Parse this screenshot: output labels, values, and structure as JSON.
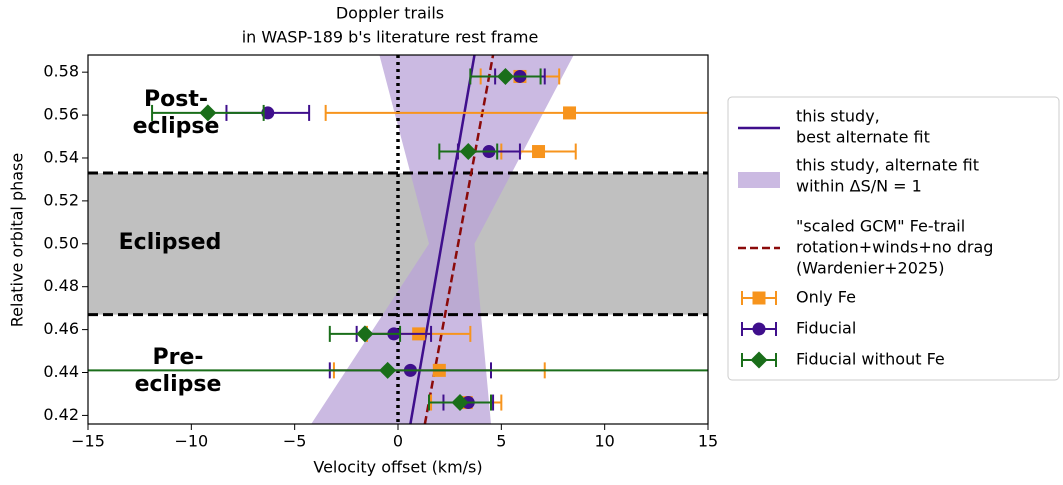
{
  "chart_data": {
    "type": "errorbar",
    "title": [
      "Doppler trails",
      "in WASP-189 b's literature rest frame"
    ],
    "x_label": "Velocity offset (km/s)",
    "y_label": "Relative orbital phase",
    "xlim": [
      -15,
      15
    ],
    "ylim": [
      0.416,
      0.588
    ],
    "xticks": [
      {
        "value": -15,
        "label": "−15"
      },
      {
        "value": -10,
        "label": "−10"
      },
      {
        "value": -5,
        "label": "−5"
      },
      0,
      5,
      10,
      15
    ],
    "yticks": [
      {
        "value": 0.42,
        "label": "0.42"
      },
      {
        "value": 0.44,
        "label": "0.44"
      },
      {
        "value": 0.46,
        "label": "0.46"
      },
      {
        "value": 0.48,
        "label": "0.48"
      },
      {
        "value": 0.5,
        "label": "0.50"
      },
      {
        "value": 0.52,
        "label": "0.52"
      },
      {
        "value": 0.54,
        "label": "0.54"
      },
      {
        "value": 0.56,
        "label": "0.56"
      },
      {
        "value": 0.58,
        "label": "0.58"
      }
    ],
    "eclipse": {
      "y": [
        0.467,
        0.533
      ],
      "color": "#c0c0c0"
    },
    "zero_line": {
      "x": 0
    },
    "annotations": [
      [
        "Post-",
        "eclipse"
      ],
      [
        "Eclipsed"
      ],
      [
        "Pre-",
        "eclipse"
      ]
    ],
    "fit_band": {
      "name": [
        "this study, alternate fit",
        "within ΔS/N = 1"
      ],
      "color": "#b9a3d8",
      "x": [
        -4.2,
        1.5,
        -0.9,
        8.5,
        3.7,
        4.5
      ],
      "y": [
        0.416,
        0.5,
        0.588,
        0.588,
        0.5,
        0.416
      ]
    },
    "fit_line": {
      "name": [
        "this study,",
        "best alternate fit"
      ],
      "color": "#3f0f8c",
      "x": [
        0.6,
        3.7
      ],
      "y": [
        0.416,
        0.588
      ]
    },
    "gcm_line": {
      "name": [
        "\"scaled GCM\" Fe-trail",
        "rotation+winds+no drag",
        "(Wardenier+2025)"
      ],
      "color": "#8b0a0a",
      "x": [
        1.3,
        4.6
      ],
      "y": [
        0.416,
        0.588
      ]
    },
    "series": [
      {
        "name": "Only Fe",
        "color": "#f7941d",
        "marker": "square",
        "y": [
          0.578,
          0.561,
          0.543,
          0.458,
          0.441,
          0.426
        ],
        "x": [
          5.9,
          8.3,
          6.8,
          1.0,
          2.0,
          3.3
        ],
        "xerr": [
          1.9,
          11.8,
          1.8,
          2.5,
          5.1,
          1.7
        ]
      },
      {
        "name": "Fiducial",
        "color": "#3f0f8c",
        "marker": "circle",
        "y": [
          0.578,
          0.561,
          0.543,
          0.458,
          0.441,
          0.426
        ],
        "x": [
          5.9,
          -6.3,
          4.4,
          -0.2,
          0.6,
          3.4
        ],
        "xerr": [
          1.2,
          2.0,
          1.5,
          1.8,
          3.9,
          1.2
        ]
      },
      {
        "name": "Fiducial without Fe",
        "color": "#1a6e1a",
        "marker": "diamond",
        "y": [
          0.578,
          0.561,
          0.543,
          0.458,
          0.441,
          0.426
        ],
        "x": [
          5.2,
          -9.2,
          3.4,
          -1.6,
          -0.5,
          3.0
        ],
        "xerr": [
          1.7,
          2.7,
          1.4,
          1.7,
          20,
          1.5
        ]
      }
    ]
  }
}
